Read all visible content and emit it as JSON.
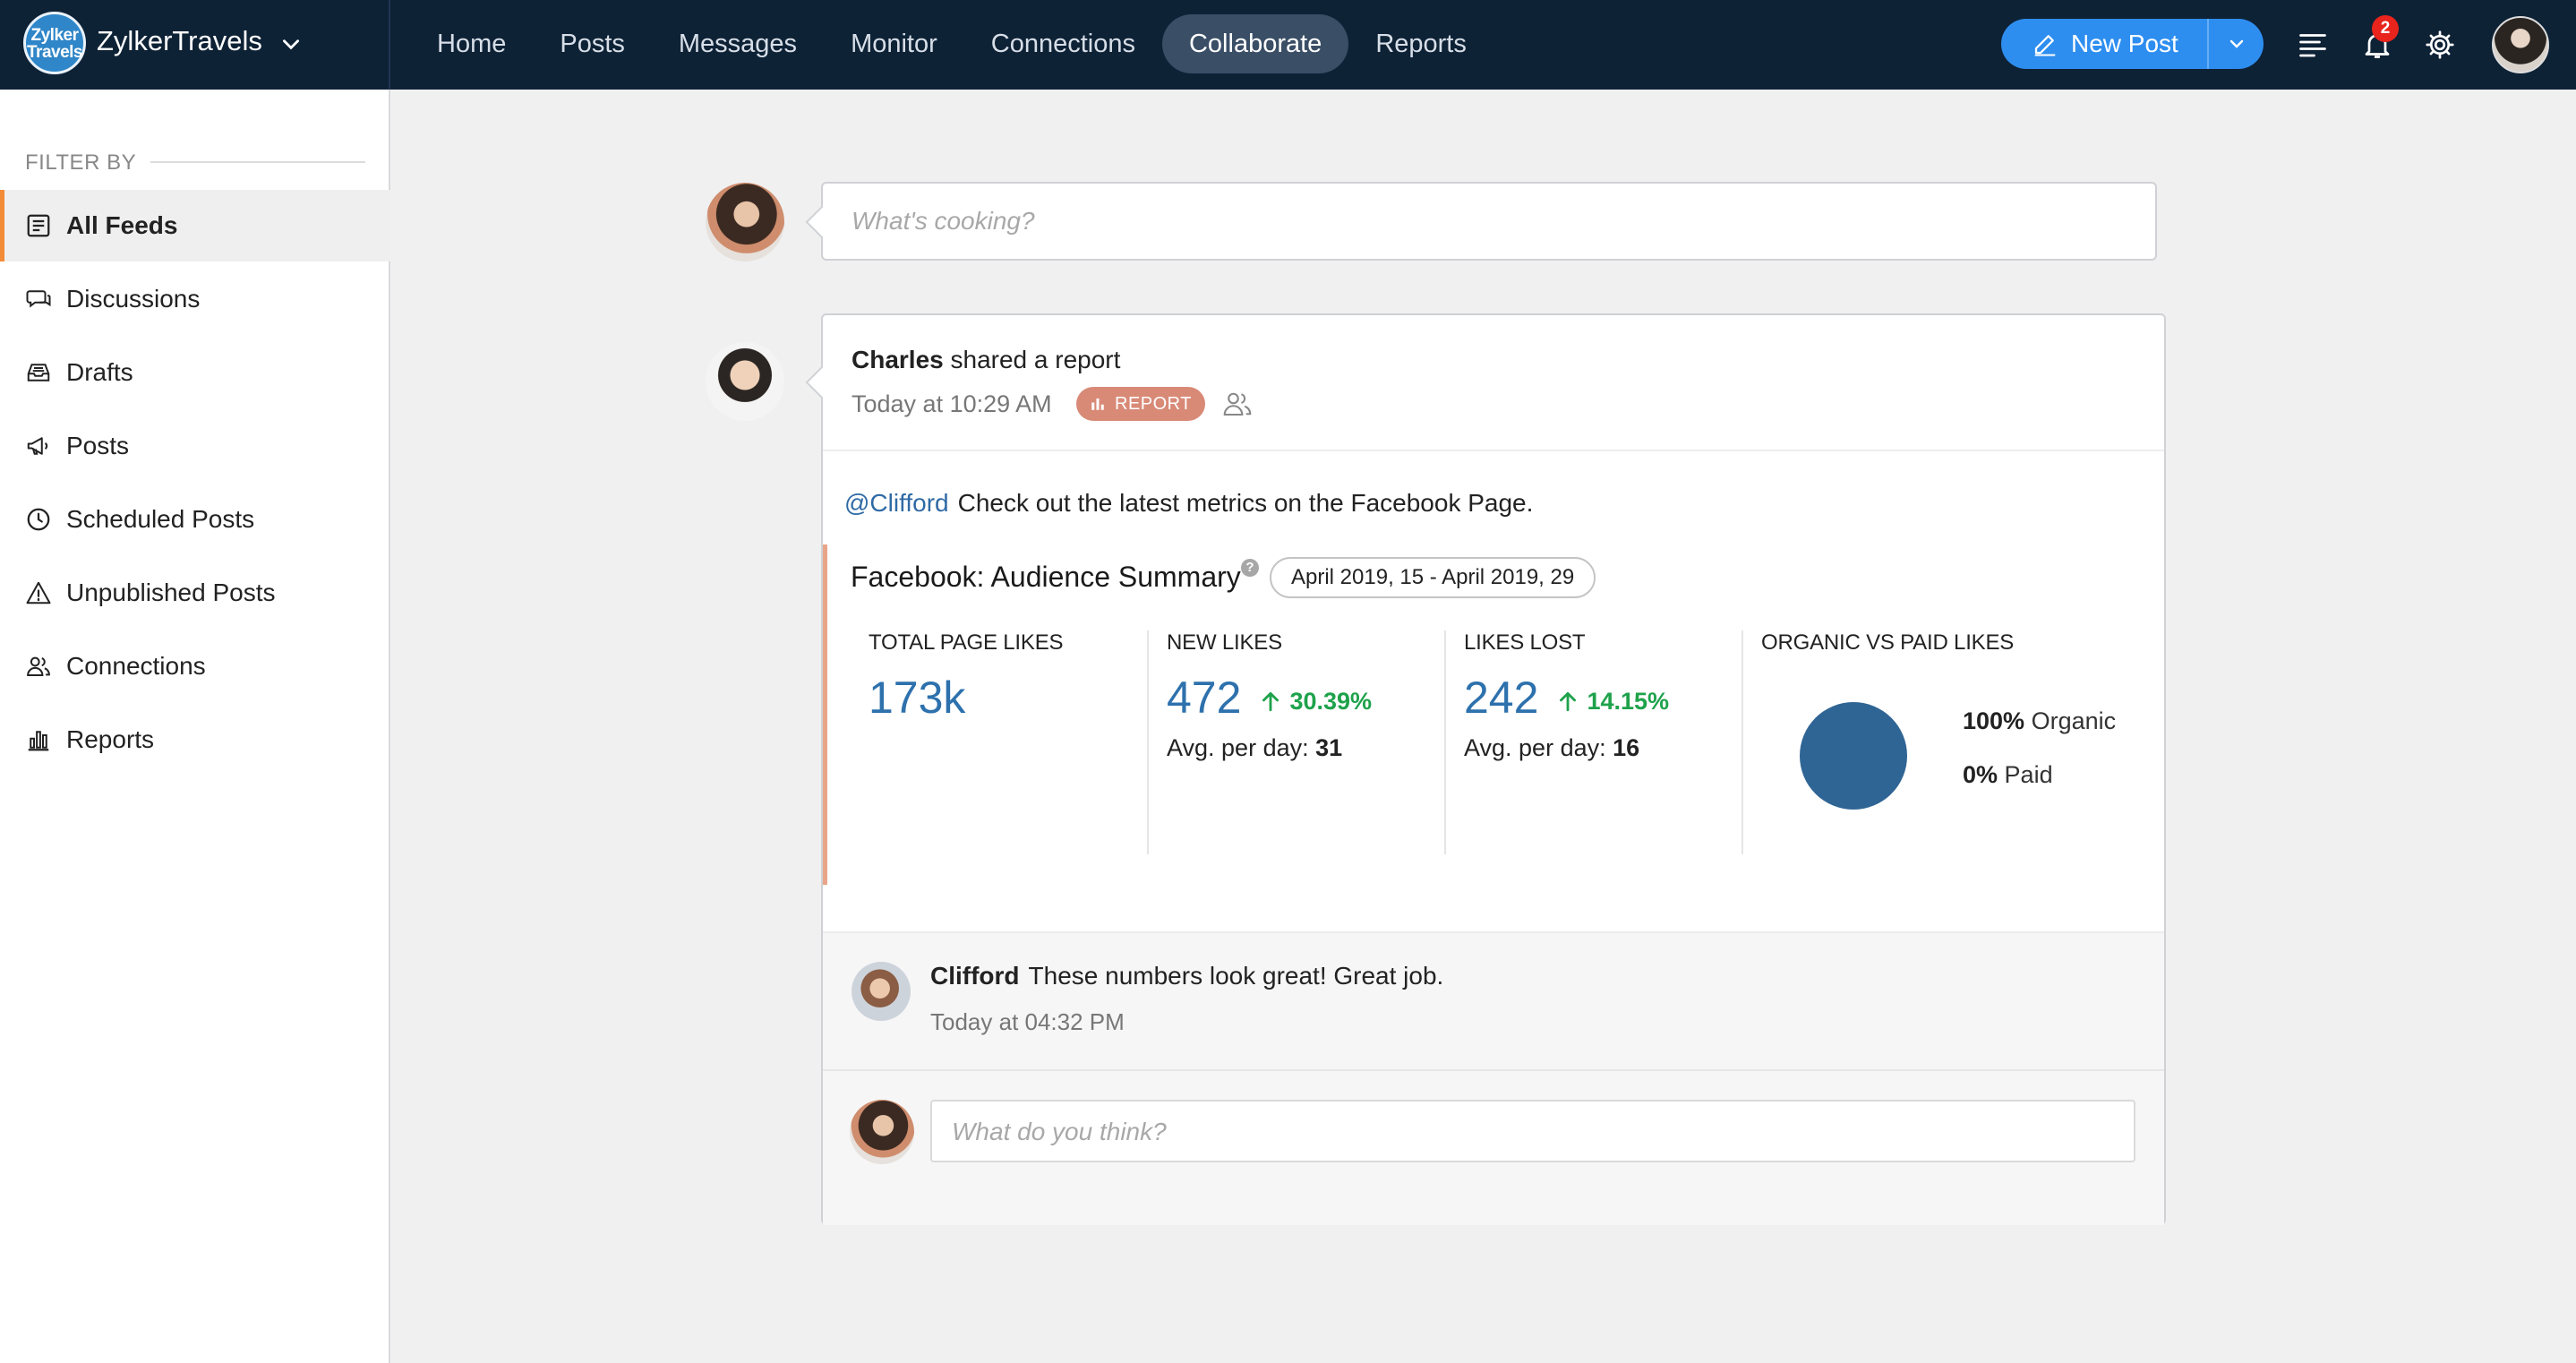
{
  "brand": {
    "logo_text": "Zylker Travels",
    "name": "ZylkerTravels"
  },
  "nav": {
    "items": [
      {
        "label": "Home",
        "active": false
      },
      {
        "label": "Posts",
        "active": false
      },
      {
        "label": "Messages",
        "active": false
      },
      {
        "label": "Monitor",
        "active": false
      },
      {
        "label": "Connections",
        "active": false
      },
      {
        "label": "Collaborate",
        "active": true
      },
      {
        "label": "Reports",
        "active": false
      }
    ]
  },
  "toolbar": {
    "new_post_label": "New Post",
    "notification_count": "2",
    "icons": [
      "menu-lines-icon",
      "bell-icon",
      "gear-icon"
    ]
  },
  "sidebar": {
    "filter_label": "FILTER BY",
    "items": [
      {
        "label": "All Feeds",
        "icon": "feeds-icon",
        "active": true
      },
      {
        "label": "Discussions",
        "icon": "chat-bubbles-icon",
        "active": false
      },
      {
        "label": "Drafts",
        "icon": "inbox-tray-icon",
        "active": false
      },
      {
        "label": "Posts",
        "icon": "megaphone-icon",
        "active": false
      },
      {
        "label": "Scheduled Posts",
        "icon": "clock-icon",
        "active": false
      },
      {
        "label": "Unpublished Posts",
        "icon": "warning-icon",
        "active": false
      },
      {
        "label": "Connections",
        "icon": "people-icon",
        "active": false
      },
      {
        "label": "Reports",
        "icon": "bar-chart-icon",
        "active": false
      }
    ]
  },
  "composer": {
    "placeholder": "What's cooking?"
  },
  "post": {
    "author": "Charles",
    "action": "shared a report",
    "time": "Today at 10:29 AM",
    "tag": "REPORT",
    "mention": "@Clifford",
    "message": "Check out the latest metrics on the Facebook Page.",
    "report": {
      "title": "Facebook: Audience Summary",
      "help": "?",
      "date_range": "April 2019, 15 - April 2019, 29",
      "metrics": [
        {
          "label": "TOTAL PAGE LIKES",
          "value": "173k"
        },
        {
          "label": "NEW LIKES",
          "value": "472",
          "change": "30.39%",
          "avg_label": "Avg. per day:",
          "avg_value": "31"
        },
        {
          "label": "LIKES LOST",
          "value": "242",
          "change": "14.15%",
          "avg_label": "Avg. per day:",
          "avg_value": "16"
        }
      ],
      "organic_vs_paid": {
        "label": "ORGANIC VS PAID LIKES",
        "organic_pct": "100%",
        "organic_label": "Organic",
        "paid_pct": "0%",
        "paid_label": "Paid",
        "color": "#2f6595"
      }
    },
    "comment": {
      "author": "Clifford",
      "text": "These numbers look great! Great job.",
      "time": "Today at 04:32 PM"
    },
    "reply_placeholder": "What do you think?"
  },
  "colors": {
    "topbar": "#0e2236",
    "accent": "#2e8ef0",
    "active_indicator": "#f28c38",
    "report_tag": "#d88a77",
    "positive": "#1ea24b"
  }
}
